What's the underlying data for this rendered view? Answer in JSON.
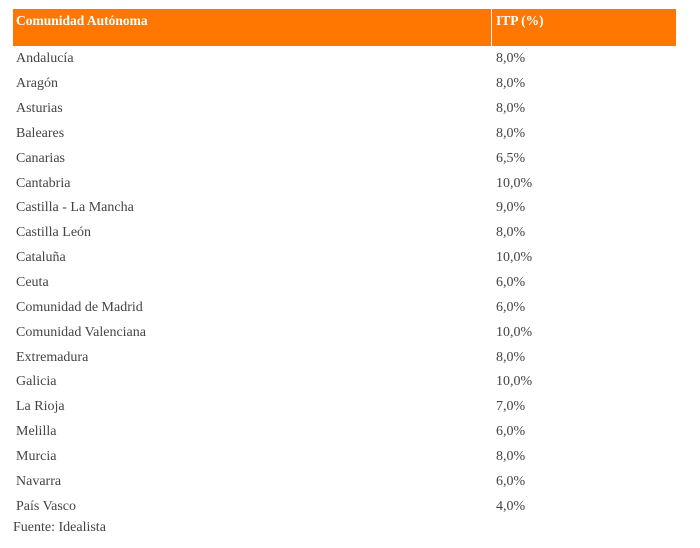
{
  "table": {
    "headers": [
      "Comunidad Autónoma",
      "ITP (%)"
    ],
    "rows": [
      [
        "Andalucía",
        "8,0%"
      ],
      [
        "Aragón",
        "8,0%"
      ],
      [
        "Asturias",
        "8,0%"
      ],
      [
        "Baleares",
        "8,0%"
      ],
      [
        "Canarias",
        "6,5%"
      ],
      [
        "Cantabria",
        "10,0%"
      ],
      [
        "Castilla - La Mancha",
        "9,0%"
      ],
      [
        "Castilla León",
        "8,0%"
      ],
      [
        "Cataluña",
        "10,0%"
      ],
      [
        "Ceuta",
        "6,0%"
      ],
      [
        "Comunidad de Madrid",
        "6,0%"
      ],
      [
        "Comunidad Valenciana",
        "10,0%"
      ],
      [
        "Extremadura",
        "8,0%"
      ],
      [
        "Galicia",
        "10,0%"
      ],
      [
        "La Rioja",
        "7,0%"
      ],
      [
        "Melilla",
        "6,0%"
      ],
      [
        "Murcia",
        "8,0%"
      ],
      [
        "Navarra",
        "6,0%"
      ],
      [
        "País Vasco",
        "4,0%"
      ]
    ],
    "header_color": "#ff7700"
  },
  "source": "Fuente: Idealista"
}
